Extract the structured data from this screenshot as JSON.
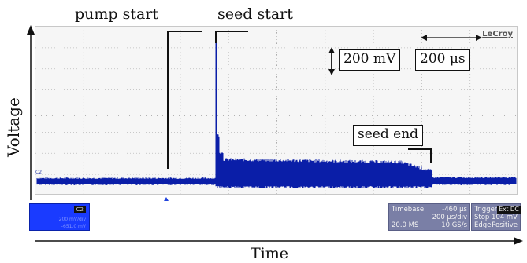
{
  "annotations": {
    "pump_start": "pump start",
    "seed_start": "seed start",
    "seed_end": "seed end",
    "volt_scale": "200 mV",
    "time_scale": "200 μs"
  },
  "axes": {
    "ylabel": "Voltage",
    "xlabel": "Time"
  },
  "scope": {
    "brand": "LeCroy",
    "channel_marker": "C2",
    "trace_color": "#0a1ea8",
    "grid_color": "#b9b9b9"
  },
  "channel_box": {
    "tag": "C2",
    "line1": "200 mV/div",
    "line2": "-651.0 mV"
  },
  "timebase": {
    "label": "Timebase",
    "offset": "-460 μs",
    "per_div": "200 μs/div",
    "samples": "20.0 MS",
    "rate": "10 GS/s"
  },
  "trigger": {
    "label": "Trigger",
    "chip": "Ext DC",
    "mode": "Stop",
    "level": "104 mV",
    "type": "Edge",
    "slope": "Positive"
  }
}
